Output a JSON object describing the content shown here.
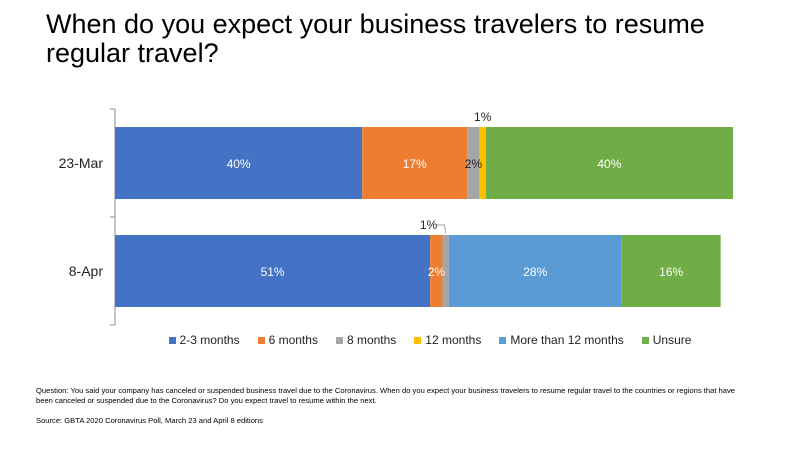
{
  "title": "When do you expect your business travelers to resume regular travel?",
  "footnote": "Question: You said your company has canceled or suspended business travel due to the Coronavirus. When do you expect your business travelers to resume regular travel to the countries or regions that have been canceled or suspended due to the Coronavirus? Do you expect travel to resume within the next.",
  "source": "Source: GBTA 2020 Coronavirus Poll, March 23 and April 8 editions",
  "chart_data": {
    "type": "bar",
    "orientation": "horizontal",
    "stacked": true,
    "categories": [
      "23-Mar",
      "8-Apr"
    ],
    "series": [
      {
        "name": "2-3 months",
        "color": "#4472C4",
        "values": [
          40,
          51
        ],
        "labels": [
          "40%",
          "51%"
        ]
      },
      {
        "name": "6 months",
        "color": "#ED7D31",
        "values": [
          17,
          2
        ],
        "labels": [
          "17%",
          "2%"
        ]
      },
      {
        "name": "8 months",
        "color": "#A5A5A5",
        "values": [
          2,
          1
        ],
        "labels": [
          "2%",
          "1%"
        ]
      },
      {
        "name": "12 months",
        "color": "#FFC000",
        "values": [
          1,
          0
        ],
        "labels": [
          "1%",
          ""
        ]
      },
      {
        "name": "More than 12 months",
        "color": "#5B9BD5",
        "values": [
          0,
          28
        ],
        "labels": [
          "",
          "28%"
        ]
      },
      {
        "name": "Unsure",
        "color": "#70AD47",
        "values": [
          40,
          16
        ],
        "labels": [
          "40%",
          "16%"
        ]
      }
    ],
    "xlim": [
      0,
      100
    ],
    "legend_position": "bottom",
    "grid": false
  }
}
